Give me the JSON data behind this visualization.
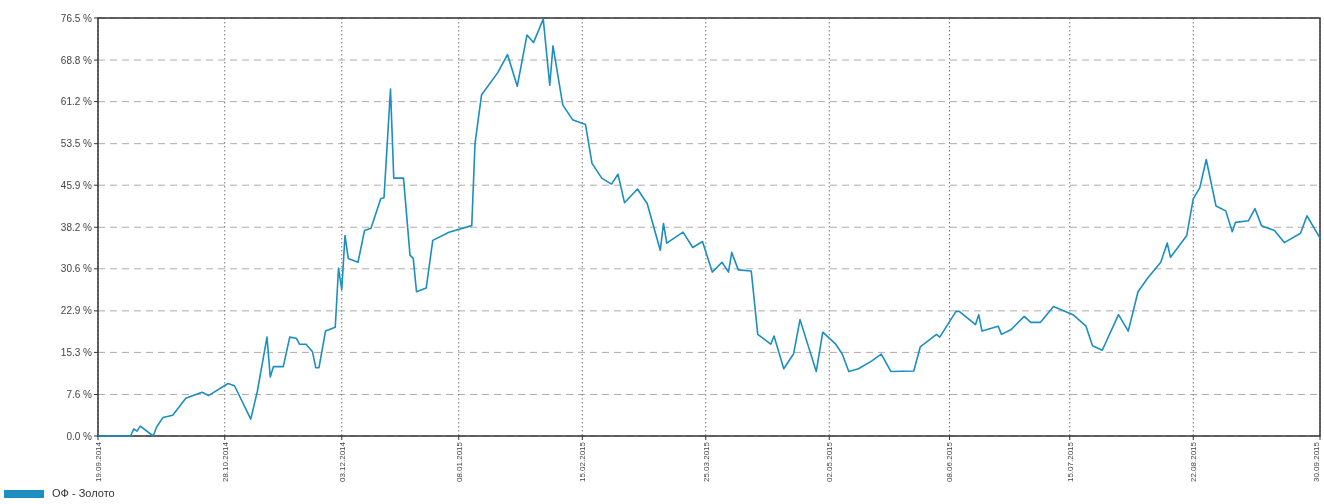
{
  "chart_data": {
    "type": "line",
    "x": [
      "2014-09-19",
      "2014-09-29",
      "2014-09-30",
      "2014-10-01",
      "2014-10-02",
      "2014-10-06",
      "2014-10-07",
      "2014-10-09",
      "2014-10-12",
      "2014-10-16",
      "2014-10-21",
      "2014-10-23",
      "2014-10-29",
      "2014-10-31",
      "2014-11-05",
      "2014-11-07",
      "2014-11-10",
      "2014-11-11",
      "2014-11-12",
      "2014-11-15",
      "2014-11-17",
      "2014-11-19",
      "2014-11-20",
      "2014-11-22",
      "2014-11-24",
      "2014-11-25",
      "2014-11-26",
      "2014-11-28",
      "2014-12-01",
      "2014-12-02",
      "2014-12-03",
      "2014-12-04",
      "2014-12-05",
      "2014-12-08",
      "2014-12-10",
      "2014-12-12",
      "2014-12-15",
      "2014-12-16",
      "2014-12-18",
      "2014-12-19",
      "2014-12-22",
      "2014-12-24",
      "2014-12-25",
      "2014-12-26",
      "2014-12-29",
      "2014-12-31",
      "2015-01-05",
      "2015-01-12",
      "2015-01-13",
      "2015-01-15",
      "2015-01-20",
      "2015-01-23",
      "2015-01-26",
      "2015-01-29",
      "2015-01-31",
      "2015-02-03",
      "2015-02-05",
      "2015-02-06",
      "2015-02-09",
      "2015-02-12",
      "2015-02-16",
      "2015-02-18",
      "2015-02-21",
      "2015-02-24",
      "2015-02-26",
      "2015-02-28",
      "2015-03-04",
      "2015-03-07",
      "2015-03-11",
      "2015-03-12",
      "2015-03-13",
      "2015-03-18",
      "2015-03-21",
      "2015-03-24",
      "2015-03-27",
      "2015-03-30",
      "2015-04-01",
      "2015-04-02",
      "2015-04-04",
      "2015-04-08",
      "2015-04-10",
      "2015-04-14",
      "2015-04-15",
      "2015-04-18",
      "2015-04-21",
      "2015-04-23",
      "2015-04-28",
      "2015-04-30",
      "2015-05-04",
      "2015-05-06",
      "2015-05-08",
      "2015-05-11",
      "2015-05-15",
      "2015-05-18",
      "2015-05-21",
      "2015-05-28",
      "2015-05-30",
      "2015-06-04",
      "2015-06-05",
      "2015-06-10",
      "2015-06-11",
      "2015-06-16",
      "2015-06-17",
      "2015-06-18",
      "2015-06-23",
      "2015-06-24",
      "2015-06-27",
      "2015-07-01",
      "2015-07-03",
      "2015-07-06",
      "2015-07-10",
      "2015-07-16",
      "2015-07-20",
      "2015-07-22",
      "2015-07-25",
      "2015-07-30",
      "2015-08-02",
      "2015-08-05",
      "2015-08-08",
      "2015-08-12",
      "2015-08-14",
      "2015-08-15",
      "2015-08-20",
      "2015-08-22",
      "2015-08-24",
      "2015-08-26",
      "2015-08-29",
      "2015-09-01",
      "2015-09-03",
      "2015-09-04",
      "2015-09-08",
      "2015-09-10",
      "2015-09-12",
      "2015-09-16",
      "2015-09-19",
      "2015-09-24",
      "2015-09-26",
      "2015-09-30"
    ],
    "series": [
      {
        "name": "ОФ - Золото",
        "color": "#1a8fc0",
        "values": [
          0,
          0,
          1.3,
          0.9,
          1.8,
          0,
          1.6,
          3.4,
          3.8,
          6.9,
          8.0,
          7.4,
          9.6,
          9.2,
          3.1,
          8.1,
          18.1,
          10.8,
          12.7,
          12.7,
          18.1,
          17.9,
          16.8,
          16.8,
          15.4,
          12.5,
          12.5,
          19.2,
          19.9,
          30.7,
          26.8,
          36.7,
          32.5,
          31.8,
          37.6,
          38.0,
          43.4,
          43.6,
          63.5,
          47.2,
          47.2,
          33.1,
          32.5,
          26.4,
          27.1,
          35.8,
          37.3,
          38.5,
          53.5,
          62.4,
          66.5,
          69.8,
          64.0,
          73.4,
          72.0,
          76.3,
          64.2,
          71.4,
          60.6,
          57.9,
          57.0,
          49.9,
          47.2,
          46.1,
          47.9,
          42.7,
          45.2,
          42.5,
          34.0,
          38.9,
          35.3,
          37.3,
          34.5,
          35.6,
          30.0,
          31.8,
          30.0,
          33.6,
          30.4,
          30.2,
          18.6,
          16.8,
          18.3,
          12.3,
          15.0,
          21.3,
          11.8,
          19.0,
          16.8,
          15.0,
          11.8,
          12.3,
          13.7,
          15.0,
          11.8,
          11.9,
          16.3,
          18.6,
          18.1,
          22.8,
          22.8,
          20.4,
          22.2,
          19.2,
          20.1,
          18.6,
          19.5,
          21.9,
          20.8,
          20.8,
          23.7,
          22.2,
          20.1,
          16.5,
          15.7,
          22.2,
          19.2,
          26.4,
          28.9,
          31.8,
          35.3,
          32.7,
          36.7,
          43.4,
          45.4,
          50.6,
          42.1,
          41.2,
          37.4,
          39.1,
          39.4,
          41.6,
          38.5,
          37.6,
          35.4,
          37.1,
          40.3,
          36.2
        ]
      }
    ],
    "xlim": [
      "2014-09-19",
      "2015-09-30"
    ],
    "xticks": [
      {
        "value": "2014-09-19",
        "label": "19.09.2014"
      },
      {
        "value": "2014-10-28",
        "label": "28.10.2014"
      },
      {
        "value": "2014-12-03",
        "label": "03.12.2014"
      },
      {
        "value": "2015-01-08",
        "label": "08.01.2015"
      },
      {
        "value": "2015-02-15",
        "label": "15.02.2015"
      },
      {
        "value": "2015-03-25",
        "label": "25.03.2015"
      },
      {
        "value": "2015-05-02",
        "label": "02.05.2015"
      },
      {
        "value": "2015-06-08",
        "label": "08.06.2015"
      },
      {
        "value": "2015-07-15",
        "label": "15.07.2015"
      },
      {
        "value": "2015-08-22",
        "label": "22.08.2015"
      },
      {
        "value": "2015-09-30",
        "label": "30.09.2015"
      }
    ],
    "ylim": [
      0,
      76.5
    ],
    "yticks": [
      {
        "value": 0,
        "label": "0.0 %"
      },
      {
        "value": 7.6,
        "label": "7.6 %"
      },
      {
        "value": 15.3,
        "label": "15.3 %"
      },
      {
        "value": 22.9,
        "label": "22.9 %"
      },
      {
        "value": 30.6,
        "label": "30.6 %"
      },
      {
        "value": 38.2,
        "label": "38.2 %"
      },
      {
        "value": 45.9,
        "label": "45.9 %"
      },
      {
        "value": 53.5,
        "label": "53.5 %"
      },
      {
        "value": 61.2,
        "label": "61.2 %"
      },
      {
        "value": 68.8,
        "label": "68.8 %"
      },
      {
        "value": 76.5,
        "label": "76.5 %"
      }
    ],
    "grid": true,
    "legend": "bottom left",
    "marker": "none",
    "line_style": "solid"
  }
}
